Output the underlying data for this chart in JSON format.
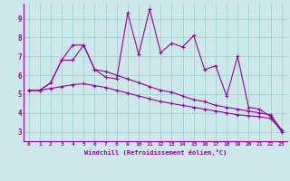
{
  "xlabel": "Windchill (Refroidissement éolien,°C)",
  "ylabel": "",
  "xlim": [
    -0.5,
    23.5
  ],
  "ylim": [
    2.5,
    9.8
  ],
  "xticks": [
    0,
    1,
    2,
    3,
    4,
    5,
    6,
    7,
    8,
    9,
    10,
    11,
    12,
    13,
    14,
    15,
    16,
    17,
    18,
    19,
    20,
    21,
    22,
    23
  ],
  "yticks": [
    3,
    4,
    5,
    6,
    7,
    8,
    9
  ],
  "bg_color": "#cce8e8",
  "line_color": "#990099",
  "grid_color": "#99cccc",
  "series1": [
    5.2,
    5.2,
    5.6,
    6.8,
    7.6,
    7.6,
    6.3,
    5.9,
    5.8,
    9.3,
    7.1,
    9.5,
    7.2,
    7.7,
    7.5,
    8.1,
    6.3,
    6.5,
    4.9,
    7.0,
    4.3,
    4.2,
    3.8,
    3.0
  ],
  "series2": [
    5.2,
    5.2,
    5.6,
    6.8,
    6.8,
    7.6,
    6.3,
    6.2,
    6.0,
    5.8,
    5.6,
    5.4,
    5.2,
    5.1,
    4.9,
    4.7,
    4.6,
    4.4,
    4.3,
    4.2,
    4.1,
    4.0,
    3.9,
    3.1
  ],
  "series3": [
    5.2,
    5.2,
    5.3,
    5.4,
    5.5,
    5.55,
    5.45,
    5.35,
    5.2,
    5.05,
    4.9,
    4.75,
    4.6,
    4.5,
    4.4,
    4.3,
    4.2,
    4.1,
    4.0,
    3.9,
    3.85,
    3.8,
    3.7,
    3.1
  ]
}
